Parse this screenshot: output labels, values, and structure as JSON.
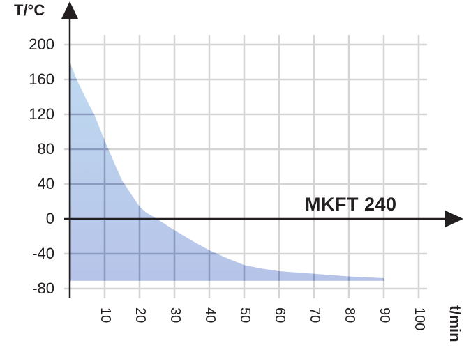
{
  "chart_data": {
    "type": "area",
    "title": "",
    "series_label": "MKFT 240",
    "ylabel": "T/°C",
    "xlabel": "t/min",
    "ylim": [
      -80,
      200
    ],
    "xlim": [
      0,
      100
    ],
    "grid": true,
    "y_ticks": [
      200,
      160,
      120,
      80,
      40,
      0,
      -40,
      -80
    ],
    "x_ticks": [
      10,
      20,
      30,
      40,
      50,
      60,
      70,
      80,
      90,
      100
    ],
    "fill_baseline": -71,
    "series": [
      {
        "name": "MKFT 240",
        "x": [
          0,
          2,
          5,
          7,
          10,
          13,
          15,
          18,
          20,
          22,
          25,
          30,
          35,
          40,
          45,
          50,
          55,
          60,
          65,
          70,
          75,
          80,
          85,
          90
        ],
        "values": [
          180,
          160,
          135,
          120,
          90,
          62,
          44,
          26,
          14,
          7,
          0,
          -13,
          -25,
          -36,
          -45,
          -53,
          -57,
          -60,
          -61.5,
          -63,
          -64.5,
          -66,
          -67,
          -68
        ]
      }
    ],
    "colors": {
      "fill_top": "#bdd7ee",
      "fill_bottom": "#b1c2e6",
      "grid": "#d4d4d4",
      "axis": "#231f20"
    }
  }
}
